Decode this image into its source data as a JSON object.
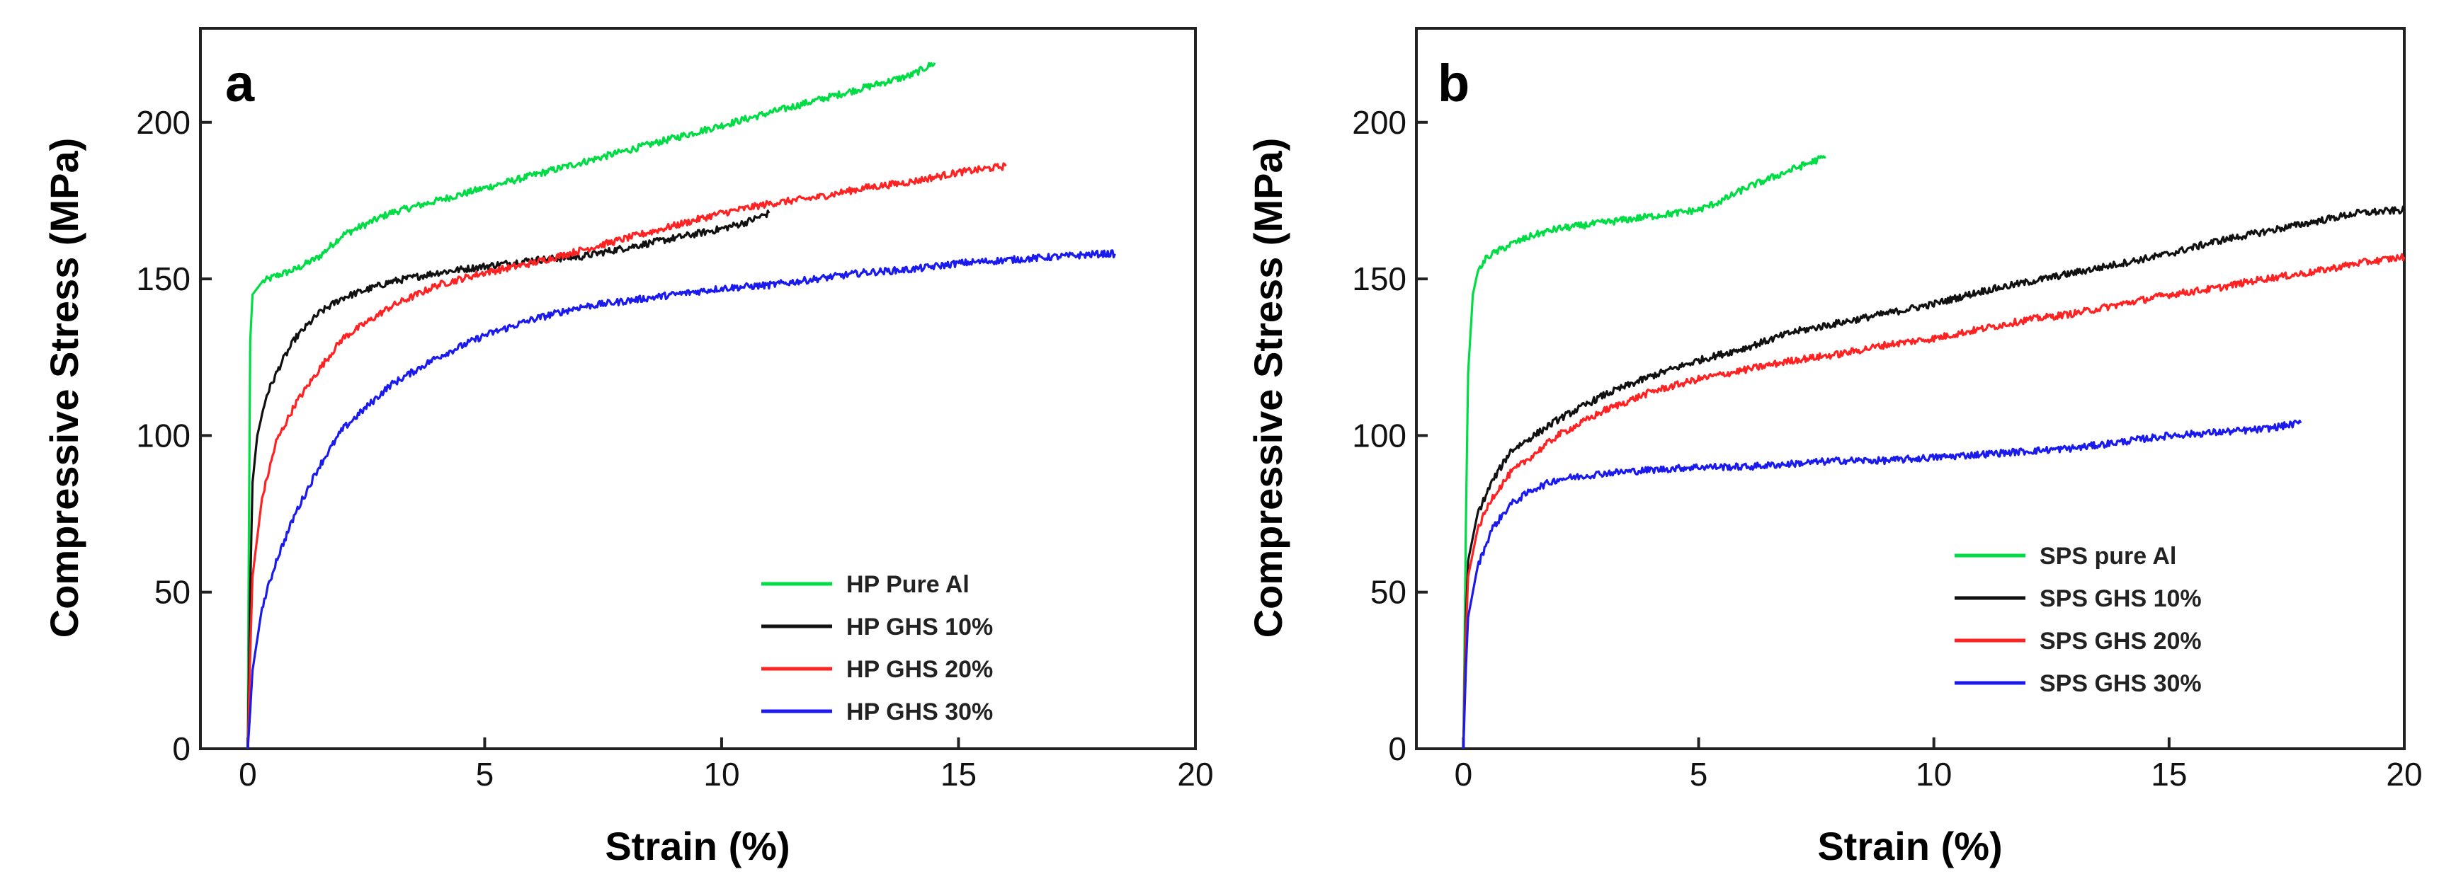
{
  "chart_data": [
    {
      "type": "line",
      "panel_label": "a",
      "xlabel": "Strain (%)",
      "ylabel": "Compressive Stress (MPa)",
      "xlim": [
        -1,
        20
      ],
      "ylim": [
        0,
        230
      ],
      "xticks": [
        0,
        5,
        10,
        15,
        20
      ],
      "yticks": [
        0,
        50,
        100,
        150,
        200
      ],
      "legend_position": "bottom-right",
      "series": [
        {
          "name": "HP Pure Al",
          "color": "#00dd44",
          "points": [
            [
              0,
              0
            ],
            [
              0.02,
              60
            ],
            [
              0.05,
              130
            ],
            [
              0.1,
              145
            ],
            [
              0.3,
              149
            ],
            [
              0.6,
              151
            ],
            [
              1,
              153
            ],
            [
              1.5,
              157
            ],
            [
              2,
              164
            ],
            [
              3,
              171
            ],
            [
              4,
              175
            ],
            [
              5,
              179
            ],
            [
              6,
              183
            ],
            [
              7,
              187
            ],
            [
              8,
              191
            ],
            [
              9,
              195
            ],
            [
              10,
              199
            ],
            [
              11,
              203
            ],
            [
              12,
              207
            ],
            [
              13,
              211
            ],
            [
              14,
              215
            ],
            [
              14.5,
              219
            ]
          ]
        },
        {
          "name": "HP GHS 10%",
          "color": "#111111",
          "points": [
            [
              0,
              0
            ],
            [
              0.05,
              50
            ],
            [
              0.1,
              85
            ],
            [
              0.2,
              100
            ],
            [
              0.4,
              113
            ],
            [
              0.7,
              123
            ],
            [
              1,
              131
            ],
            [
              1.5,
              139
            ],
            [
              2,
              144
            ],
            [
              3,
              149
            ],
            [
              4,
              152
            ],
            [
              5,
              154
            ],
            [
              6,
              156
            ],
            [
              7,
              157
            ],
            [
              8,
              160
            ],
            [
              9,
              163
            ],
            [
              10,
              166
            ],
            [
              10.5,
              168
            ],
            [
              11,
              171
            ]
          ]
        },
        {
          "name": "HP GHS 20%",
          "color": "#ff2222",
          "points": [
            [
              0,
              0
            ],
            [
              0.05,
              30
            ],
            [
              0.1,
              55
            ],
            [
              0.3,
              80
            ],
            [
              0.6,
              98
            ],
            [
              1,
              110
            ],
            [
              1.5,
              121
            ],
            [
              2,
              131
            ],
            [
              3,
              141
            ],
            [
              4,
              148
            ],
            [
              5,
              152
            ],
            [
              6,
              155
            ],
            [
              7,
              159
            ],
            [
              8,
              163
            ],
            [
              9,
              167
            ],
            [
              10,
              171
            ],
            [
              11,
              174
            ],
            [
              12,
              176
            ],
            [
              13,
              179
            ],
            [
              14,
              181
            ],
            [
              15,
              184
            ],
            [
              16,
              186
            ]
          ]
        },
        {
          "name": "HP GHS 30%",
          "color": "#1a1aee",
          "points": [
            [
              0,
              0
            ],
            [
              0.05,
              12
            ],
            [
              0.1,
              25
            ],
            [
              0.3,
              45
            ],
            [
              0.6,
              60
            ],
            [
              1,
              75
            ],
            [
              1.5,
              90
            ],
            [
              2,
              102
            ],
            [
              3,
              116
            ],
            [
              4,
              125
            ],
            [
              5,
              132
            ],
            [
              6,
              137
            ],
            [
              7,
              141
            ],
            [
              8,
              143
            ],
            [
              9,
              145
            ],
            [
              10,
              147
            ],
            [
              11,
              148
            ],
            [
              12,
              150
            ],
            [
              13,
              152
            ],
            [
              14,
              153
            ],
            [
              15,
              155
            ],
            [
              16,
              156
            ],
            [
              17,
              157
            ],
            [
              18,
              158
            ],
            [
              18.3,
              158
            ]
          ]
        }
      ]
    },
    {
      "type": "line",
      "panel_label": "b",
      "xlabel": "Strain (%)",
      "ylabel": "Compressive Stress (MPa)",
      "xlim": [
        -1,
        20
      ],
      "ylim": [
        0,
        230
      ],
      "xticks": [
        0,
        5,
        10,
        15,
        20
      ],
      "yticks": [
        0,
        50,
        100,
        150,
        200
      ],
      "legend_position": "bottom-right",
      "series": [
        {
          "name": "SPS pure Al",
          "color": "#00dd44",
          "points": [
            [
              0,
              0
            ],
            [
              0.05,
              70
            ],
            [
              0.1,
              120
            ],
            [
              0.2,
              145
            ],
            [
              0.3,
              152
            ],
            [
              0.5,
              157
            ],
            [
              1,
              161
            ],
            [
              1.5,
              164
            ],
            [
              2,
              166
            ],
            [
              3,
              168
            ],
            [
              4,
              170
            ],
            [
              5,
              172
            ],
            [
              5.5,
              175
            ],
            [
              6,
              179
            ],
            [
              7,
              185
            ],
            [
              7.7,
              189
            ]
          ]
        },
        {
          "name": "SPS GHS 10%",
          "color": "#111111",
          "points": [
            [
              0,
              0
            ],
            [
              0.05,
              40
            ],
            [
              0.1,
              60
            ],
            [
              0.3,
              75
            ],
            [
              0.6,
              85
            ],
            [
              1,
              95
            ],
            [
              2,
              105
            ],
            [
              3,
              113
            ],
            [
              4,
              119
            ],
            [
              5,
              124
            ],
            [
              6,
              128
            ],
            [
              7,
              133
            ],
            [
              8,
              136
            ],
            [
              9,
              139
            ],
            [
              10,
              142
            ],
            [
              11,
              146
            ],
            [
              12,
              149
            ],
            [
              13,
              152
            ],
            [
              14,
              155
            ],
            [
              15,
              158
            ],
            [
              16,
              162
            ],
            [
              17,
              165
            ],
            [
              18,
              168
            ],
            [
              19,
              171
            ],
            [
              20,
              172
            ]
          ]
        },
        {
          "name": "SPS GHS 20%",
          "color": "#ff2222",
          "points": [
            [
              0,
              0
            ],
            [
              0.05,
              35
            ],
            [
              0.1,
              55
            ],
            [
              0.3,
              70
            ],
            [
              0.6,
              80
            ],
            [
              1,
              88
            ],
            [
              2,
              100
            ],
            [
              3,
              108
            ],
            [
              4,
              114
            ],
            [
              5,
              118
            ],
            [
              6,
              121
            ],
            [
              7,
              124
            ],
            [
              8,
              126
            ],
            [
              9,
              129
            ],
            [
              10,
              131
            ],
            [
              11,
              134
            ],
            [
              12,
              137
            ],
            [
              13,
              139
            ],
            [
              14,
              142
            ],
            [
              15,
              145
            ],
            [
              16,
              147
            ],
            [
              17,
              150
            ],
            [
              18,
              152
            ],
            [
              19,
              155
            ],
            [
              20,
              157
            ]
          ]
        },
        {
          "name": "SPS GHS 30%",
          "color": "#1a1aee",
          "points": [
            [
              0,
              0
            ],
            [
              0.05,
              25
            ],
            [
              0.1,
              42
            ],
            [
              0.3,
              58
            ],
            [
              0.6,
              70
            ],
            [
              1,
              78
            ],
            [
              1.5,
              83
            ],
            [
              2,
              86
            ],
            [
              3,
              88
            ],
            [
              4,
              89
            ],
            [
              5,
              90
            ],
            [
              6,
              90
            ],
            [
              7,
              91
            ],
            [
              8,
              92
            ],
            [
              9,
              92
            ],
            [
              10,
              93
            ],
            [
              11,
              94
            ],
            [
              12,
              95
            ],
            [
              13,
              96
            ],
            [
              14,
              98
            ],
            [
              15,
              100
            ],
            [
              16,
              101
            ],
            [
              17,
              102
            ],
            [
              17.8,
              104
            ]
          ]
        }
      ]
    }
  ]
}
